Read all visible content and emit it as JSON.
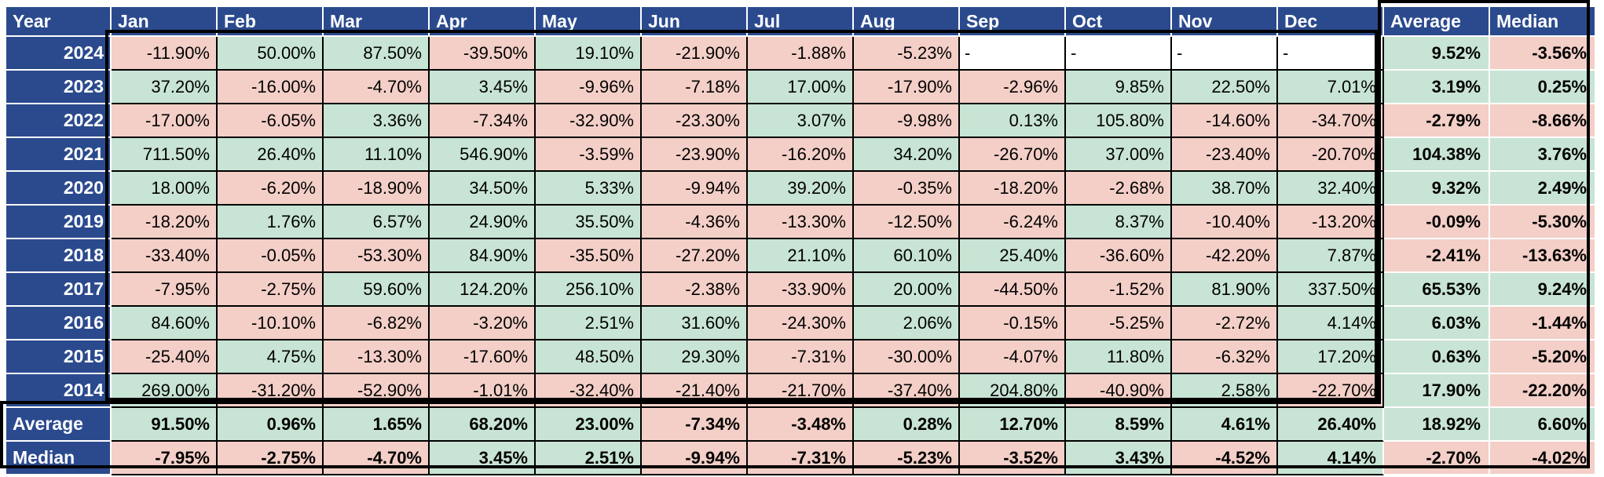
{
  "chart_data": {
    "type": "table",
    "columns": [
      "Year",
      "Jan",
      "Feb",
      "Mar",
      "Apr",
      "May",
      "Jun",
      "Jul",
      "Aug",
      "Sep",
      "Oct",
      "Nov",
      "Dec",
      "Average",
      "Median"
    ],
    "empty_placeholder": "-",
    "rows": [
      {
        "year": "2024",
        "monthly": [
          "-11.90%",
          "50.00%",
          "87.50%",
          "-39.50%",
          "19.10%",
          "-21.90%",
          "-1.88%",
          "-5.23%",
          "-",
          "-",
          "-",
          "-"
        ],
        "average": "9.52%",
        "median": "-3.56%"
      },
      {
        "year": "2023",
        "monthly": [
          "37.20%",
          "-16.00%",
          "-4.70%",
          "3.45%",
          "-9.96%",
          "-7.18%",
          "17.00%",
          "-17.90%",
          "-2.96%",
          "9.85%",
          "22.50%",
          "7.01%"
        ],
        "average": "3.19%",
        "median": "0.25%"
      },
      {
        "year": "2022",
        "monthly": [
          "-17.00%",
          "-6.05%",
          "3.36%",
          "-7.34%",
          "-32.90%",
          "-23.30%",
          "3.07%",
          "-9.98%",
          "0.13%",
          "105.80%",
          "-14.60%",
          "-34.70%"
        ],
        "average": "-2.79%",
        "median": "-8.66%"
      },
      {
        "year": "2021",
        "monthly": [
          "711.50%",
          "26.40%",
          "11.10%",
          "546.90%",
          "-3.59%",
          "-23.90%",
          "-16.20%",
          "34.20%",
          "-26.70%",
          "37.00%",
          "-23.40%",
          "-20.70%"
        ],
        "average": "104.38%",
        "median": "3.76%"
      },
      {
        "year": "2020",
        "monthly": [
          "18.00%",
          "-6.20%",
          "-18.90%",
          "34.50%",
          "5.33%",
          "-9.94%",
          "39.20%",
          "-0.35%",
          "-18.20%",
          "-2.68%",
          "38.70%",
          "32.40%"
        ],
        "average": "9.32%",
        "median": "2.49%"
      },
      {
        "year": "2019",
        "monthly": [
          "-18.20%",
          "1.76%",
          "6.57%",
          "24.90%",
          "35.50%",
          "-4.36%",
          "-13.30%",
          "-12.50%",
          "-6.24%",
          "8.37%",
          "-10.40%",
          "-13.20%"
        ],
        "average": "-0.09%",
        "median": "-5.30%"
      },
      {
        "year": "2018",
        "monthly": [
          "-33.40%",
          "-0.05%",
          "-53.30%",
          "84.90%",
          "-35.50%",
          "-27.20%",
          "21.10%",
          "60.10%",
          "25.40%",
          "-36.60%",
          "-42.20%",
          "7.87%"
        ],
        "average": "-2.41%",
        "median": "-13.63%"
      },
      {
        "year": "2017",
        "monthly": [
          "-7.95%",
          "-2.75%",
          "59.60%",
          "124.20%",
          "256.10%",
          "-2.38%",
          "-33.90%",
          "20.00%",
          "-44.50%",
          "-1.52%",
          "81.90%",
          "337.50%"
        ],
        "average": "65.53%",
        "median": "9.24%"
      },
      {
        "year": "2016",
        "monthly": [
          "84.60%",
          "-10.10%",
          "-6.82%",
          "-3.20%",
          "2.51%",
          "31.60%",
          "-24.30%",
          "2.06%",
          "-0.15%",
          "-5.25%",
          "-2.72%",
          "4.14%"
        ],
        "average": "6.03%",
        "median": "-1.44%"
      },
      {
        "year": "2015",
        "monthly": [
          "-25.40%",
          "4.75%",
          "-13.30%",
          "-17.60%",
          "48.50%",
          "29.30%",
          "-7.31%",
          "-30.00%",
          "-4.07%",
          "11.80%",
          "-6.32%",
          "17.20%"
        ],
        "average": "0.63%",
        "median": "-5.20%"
      },
      {
        "year": "2014",
        "monthly": [
          "269.00%",
          "-31.20%",
          "-52.90%",
          "-1.01%",
          "-32.40%",
          "-21.40%",
          "-21.70%",
          "-37.40%",
          "204.80%",
          "-40.90%",
          "2.58%",
          "-22.70%"
        ],
        "average": "17.90%",
        "median": "-22.20%"
      }
    ],
    "summary_rows": [
      {
        "label": "Average",
        "monthly": [
          "91.50%",
          "0.96%",
          "1.65%",
          "68.20%",
          "23.00%",
          "-7.34%",
          "-3.48%",
          "0.28%",
          "12.70%",
          "8.59%",
          "4.61%",
          "26.40%"
        ],
        "average": "18.92%",
        "median": "6.60%"
      },
      {
        "label": "Median",
        "monthly": [
          "-7.95%",
          "-2.75%",
          "-4.70%",
          "3.45%",
          "2.51%",
          "-9.94%",
          "-7.31%",
          "-5.23%",
          "-3.52%",
          "3.43%",
          "-4.52%",
          "4.14%"
        ],
        "average": "-2.70%",
        "median": "-4.02%"
      }
    ]
  },
  "colors": {
    "header_blue": "#2B4A8E",
    "positive_green": "#C8E4D4",
    "negative_pink": "#F3CFC7",
    "empty_white": "#FFFFFF",
    "grid_black": "#000000",
    "separator_white": "#FFFFFF"
  }
}
